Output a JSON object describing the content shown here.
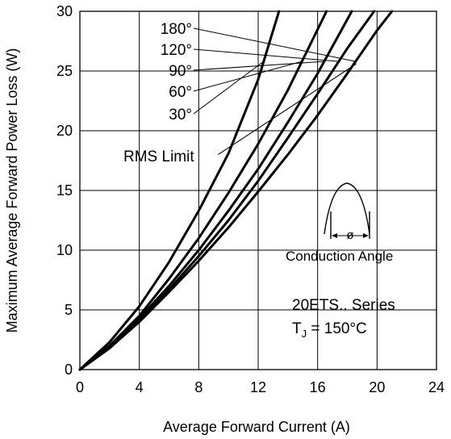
{
  "chart_data": {
    "type": "line",
    "title": "",
    "xlabel": "Average Forward Current (A)",
    "ylabel": "Maximum Average Forward Power Loss (W)",
    "xlim": [
      0,
      24
    ],
    "ylim": [
      0,
      30
    ],
    "xticks": [
      0,
      4,
      8,
      12,
      16,
      20,
      24
    ],
    "yticks": [
      0,
      5,
      10,
      15,
      20,
      25,
      30
    ],
    "grid": true,
    "series": [
      {
        "name": "180°",
        "x": [
          0,
          2,
          4,
          6,
          8,
          10,
          12,
          14,
          16,
          18,
          20,
          21
        ],
        "y": [
          0,
          1.8,
          4.0,
          6.5,
          9.1,
          11.9,
          14.9,
          18.0,
          21.3,
          24.8,
          28.4,
          30.0
        ]
      },
      {
        "name": "120°",
        "x": [
          0,
          2,
          4,
          6,
          8,
          10,
          12,
          14,
          16,
          18,
          19.8
        ],
        "y": [
          0,
          1.8,
          4.1,
          6.7,
          9.5,
          12.5,
          15.8,
          19.4,
          23.1,
          26.9,
          30.0
        ]
      },
      {
        "name": "90°",
        "x": [
          0,
          2,
          4,
          6,
          8,
          10,
          12,
          14,
          16,
          18.3
        ],
        "y": [
          0,
          1.9,
          4.3,
          7.0,
          10.0,
          13.3,
          16.8,
          20.7,
          24.8,
          30.0
        ]
      },
      {
        "name": "60°",
        "x": [
          0,
          2,
          4,
          6,
          8,
          10,
          12,
          14,
          16.6
        ],
        "y": [
          0,
          2.0,
          4.5,
          7.6,
          11.0,
          14.8,
          18.9,
          23.4,
          30.0
        ]
      },
      {
        "name": "30°",
        "x": [
          0,
          2,
          4,
          6,
          8,
          10,
          12,
          13.4
        ],
        "y": [
          0,
          2.3,
          5.3,
          9.0,
          13.3,
          18.1,
          24.3,
          30.0
        ]
      }
    ],
    "rms_limit": {
      "label": "RMS Limit",
      "x": [
        9.3,
        18.6
      ],
      "y": [
        18.0,
        25.6
      ]
    },
    "annotations": {
      "conduction_label": "Conduction Angle",
      "phi_symbol": "ø",
      "series_text": "20ETS.. Series",
      "tj_main": "T",
      "tj_sub": "J",
      "tj_value": " = 150°C"
    }
  }
}
